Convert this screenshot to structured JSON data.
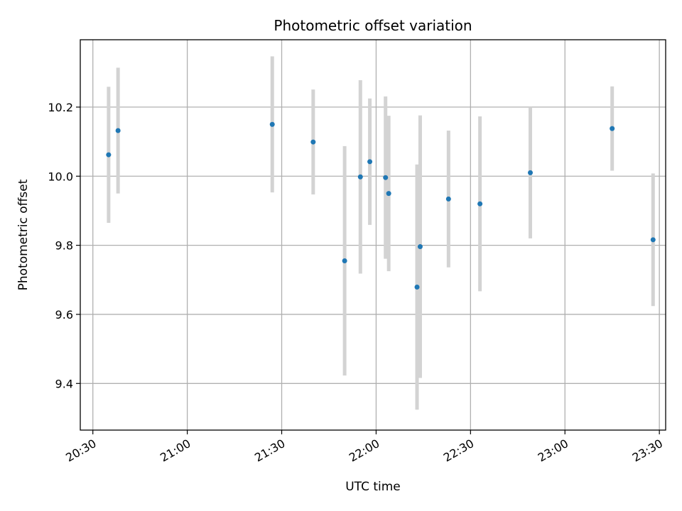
{
  "chart_data": {
    "type": "scatter",
    "title": "Photometric offset variation",
    "xlabel": "UTC time",
    "ylabel": "Photometric offset",
    "xlim": [
      "20:26",
      "23:32"
    ],
    "ylim": [
      9.265,
      10.395
    ],
    "grid": true,
    "x_ticks": [
      "20:30",
      "21:00",
      "21:30",
      "22:00",
      "22:30",
      "23:00",
      "23:30"
    ],
    "y_ticks": [
      "9.4",
      "9.6",
      "9.8",
      "10.0",
      "10.2"
    ],
    "marker_color": "#1f77b4",
    "errorbar_color": "#d3d3d3",
    "points": [
      {
        "x": "20:35",
        "y": 10.062,
        "yerr": 0.197
      },
      {
        "x": "20:38",
        "y": 10.132,
        "yerr": 0.182
      },
      {
        "x": "21:27",
        "y": 10.15,
        "yerr": 0.197
      },
      {
        "x": "21:40",
        "y": 10.099,
        "yerr": 0.152
      },
      {
        "x": "21:50",
        "y": 9.755,
        "yerr": 0.332
      },
      {
        "x": "21:55",
        "y": 9.998,
        "yerr": 0.28
      },
      {
        "x": "21:58",
        "y": 10.042,
        "yerr": 0.183
      },
      {
        "x": "22:03",
        "y": 9.996,
        "yerr": 0.235
      },
      {
        "x": "22:04",
        "y": 9.95,
        "yerr": 0.225
      },
      {
        "x": "22:13",
        "y": 9.679,
        "yerr": 0.355
      },
      {
        "x": "22:14",
        "y": 9.796,
        "yerr": 0.38
      },
      {
        "x": "22:23",
        "y": 9.934,
        "yerr": 0.198
      },
      {
        "x": "22:33",
        "y": 9.92,
        "yerr": 0.253
      },
      {
        "x": "22:49",
        "y": 10.01,
        "yerr": 0.19
      },
      {
        "x": "23:15",
        "y": 10.138,
        "yerr": 0.122
      },
      {
        "x": "23:28",
        "y": 9.816,
        "yerr": 0.192
      }
    ]
  }
}
